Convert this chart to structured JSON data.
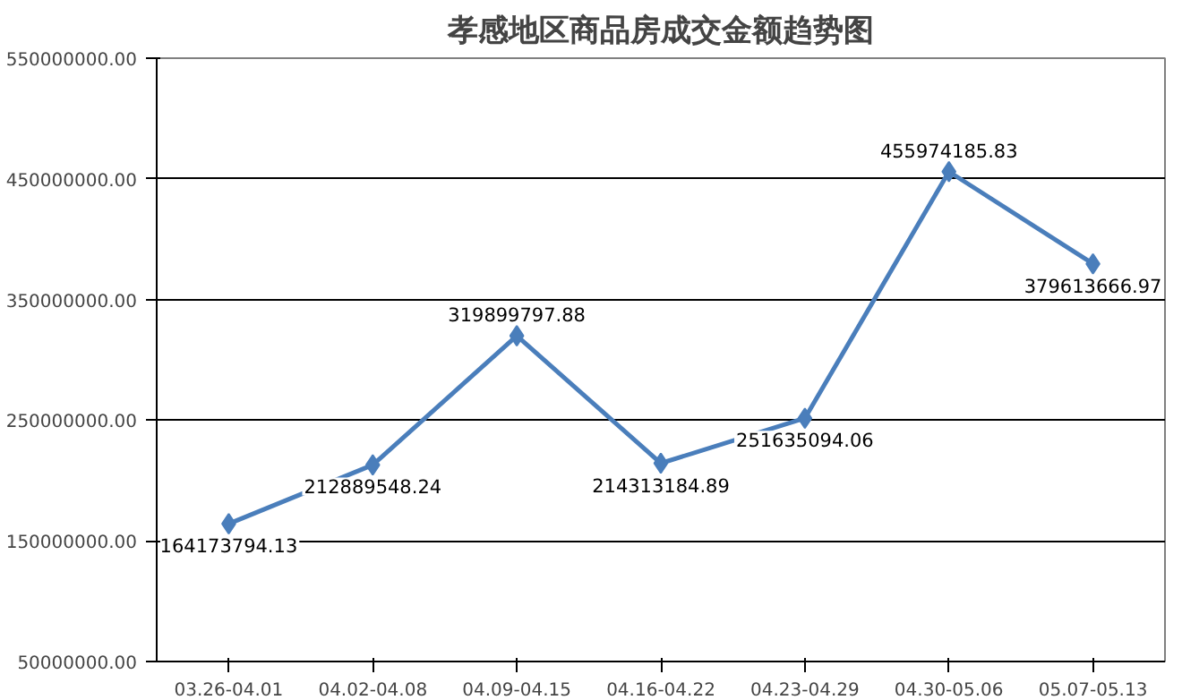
{
  "chart_data": {
    "type": "line",
    "title": "孝感地区商品房成交金额趋势图",
    "categories": [
      "03.26-04.01",
      "04.02-04.08",
      "04.09-04.15",
      "04.16-04.22",
      "04.23-04.29",
      "04.30-05.06",
      "05.07-05.13"
    ],
    "series": [
      {
        "color": "#4a7ebb",
        "values": [
          164173794.13,
          212889548.24,
          319899797.88,
          214313184.89,
          251635094.06,
          455974185.83,
          379613666.97
        ]
      }
    ],
    "ylim": [
      50000000,
      550000000
    ],
    "yticks": [
      {
        "value": 50000000,
        "label": "50000000.00"
      },
      {
        "value": 150000000,
        "label": "150000000.00"
      },
      {
        "value": 250000000,
        "label": "250000000.00"
      },
      {
        "value": 350000000,
        "label": "350000000.00"
      },
      {
        "value": 450000000,
        "label": "450000000.00"
      },
      {
        "value": 550000000,
        "label": "550000000.00"
      }
    ],
    "grid": "y",
    "marker": "diamond",
    "line_style": "solid",
    "data_labels": true
  }
}
